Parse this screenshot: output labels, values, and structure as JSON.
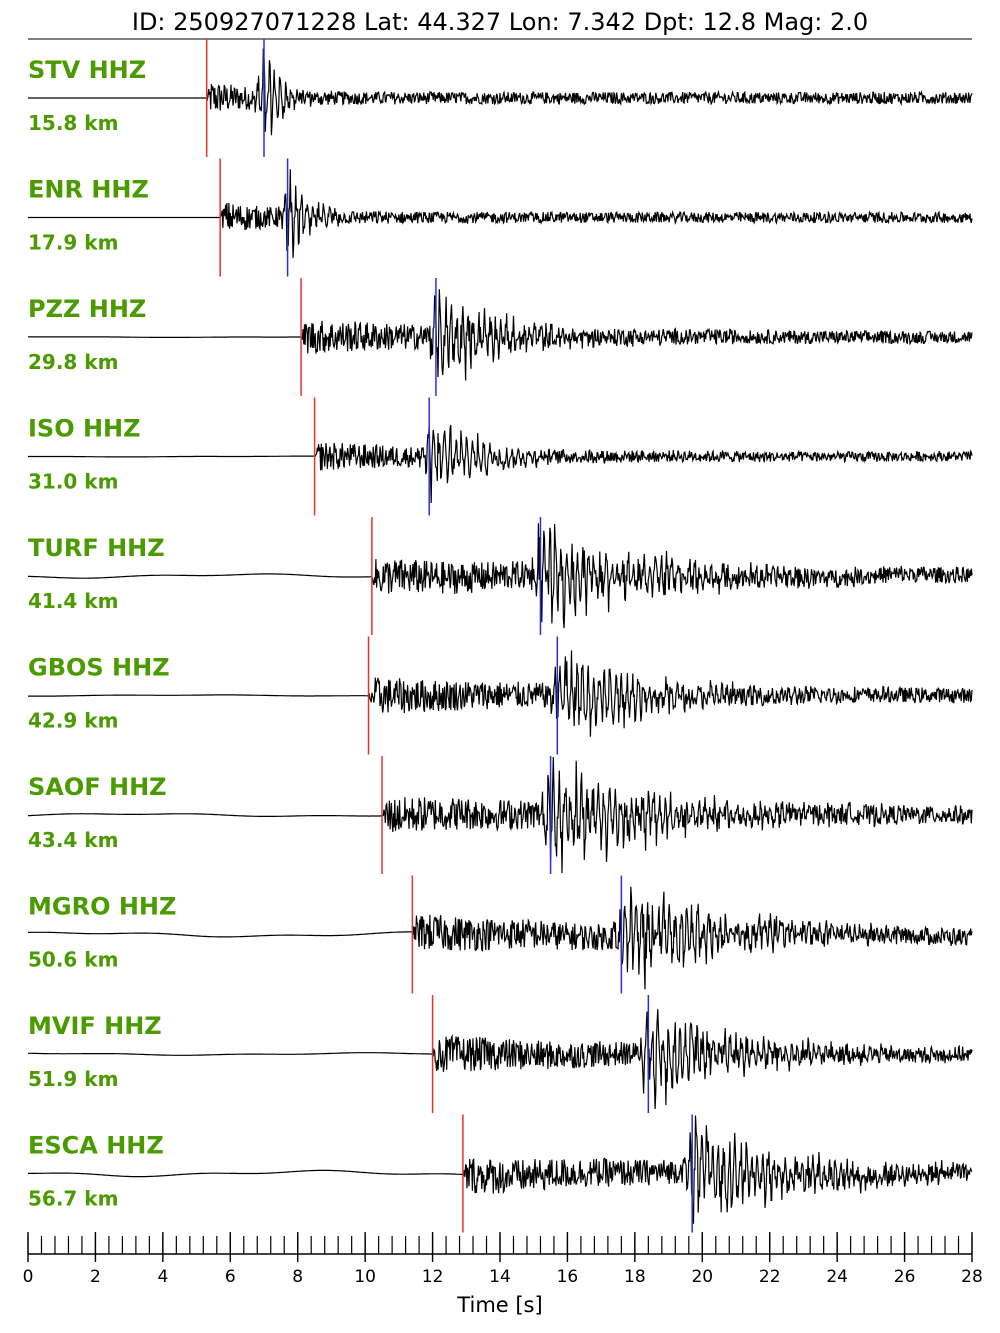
{
  "header": {
    "title": "ID: 250927071228 Lat:  44.327 Lon:   7.342 Dpt:    12.8 Mag:   2.0"
  },
  "colors": {
    "label": "#4a9a00",
    "p_pick": "#e8332a",
    "s_pick": "#2233dd",
    "trace": "#000000"
  },
  "chart_data": {
    "type": "line",
    "title": "ID: 250927071228 Lat:  44.327 Lon:   7.342 Dpt:    12.8 Mag:   2.0",
    "xlabel": "Time [s]",
    "ylabel": "",
    "xlim": [
      0,
      28
    ],
    "xticks": [
      0,
      2,
      4,
      6,
      8,
      10,
      12,
      14,
      16,
      18,
      20,
      22,
      24,
      26,
      28
    ],
    "minor_tick_step": 0.4,
    "grid": false,
    "traces": [
      {
        "station": "STV HHZ",
        "distance": "15.8 km",
        "p_time": 5.3,
        "s_time": 7.0,
        "amp": 1.0,
        "decay": 1.0,
        "drift": 0.0
      },
      {
        "station": "ENR HHZ",
        "distance": "17.9 km",
        "p_time": 5.7,
        "s_time": 7.7,
        "amp": 0.9,
        "decay": 1.2,
        "drift": 0.0
      },
      {
        "station": "PZZ HHZ",
        "distance": "29.8 km",
        "p_time": 8.1,
        "s_time": 12.1,
        "amp": 0.95,
        "decay": 4.0,
        "drift": 0.05
      },
      {
        "station": "ISO HHZ",
        "distance": "31.0 km",
        "p_time": 8.5,
        "s_time": 11.9,
        "amp": 0.8,
        "decay": 3.0,
        "drift": 0.05
      },
      {
        "station": "TURF HHZ",
        "distance": "41.4 km",
        "p_time": 10.2,
        "s_time": 15.2,
        "amp": 1.0,
        "decay": 6.0,
        "drift": 0.25
      },
      {
        "station": "GBOS HHZ",
        "distance": "42.9 km",
        "p_time": 10.1,
        "s_time": 15.7,
        "amp": 1.0,
        "decay": 5.0,
        "drift": 0.08
      },
      {
        "station": "SAOF HHZ",
        "distance": "43.4 km",
        "p_time": 10.5,
        "s_time": 15.5,
        "amp": 1.0,
        "decay": 7.0,
        "drift": 0.2
      },
      {
        "station": "MGRO HHZ",
        "distance": "50.6 km",
        "p_time": 11.4,
        "s_time": 17.6,
        "amp": 1.0,
        "decay": 6.0,
        "drift": 0.3
      },
      {
        "station": "MVIF HHZ",
        "distance": "51.9 km",
        "p_time": 12.0,
        "s_time": 18.4,
        "amp": 1.0,
        "decay": 5.0,
        "drift": 0.15
      },
      {
        "station": "ESCA HHZ",
        "distance": "56.7 km",
        "p_time": 12.9,
        "s_time": 19.7,
        "amp": 1.0,
        "decay": 6.0,
        "drift": 0.35
      }
    ]
  }
}
